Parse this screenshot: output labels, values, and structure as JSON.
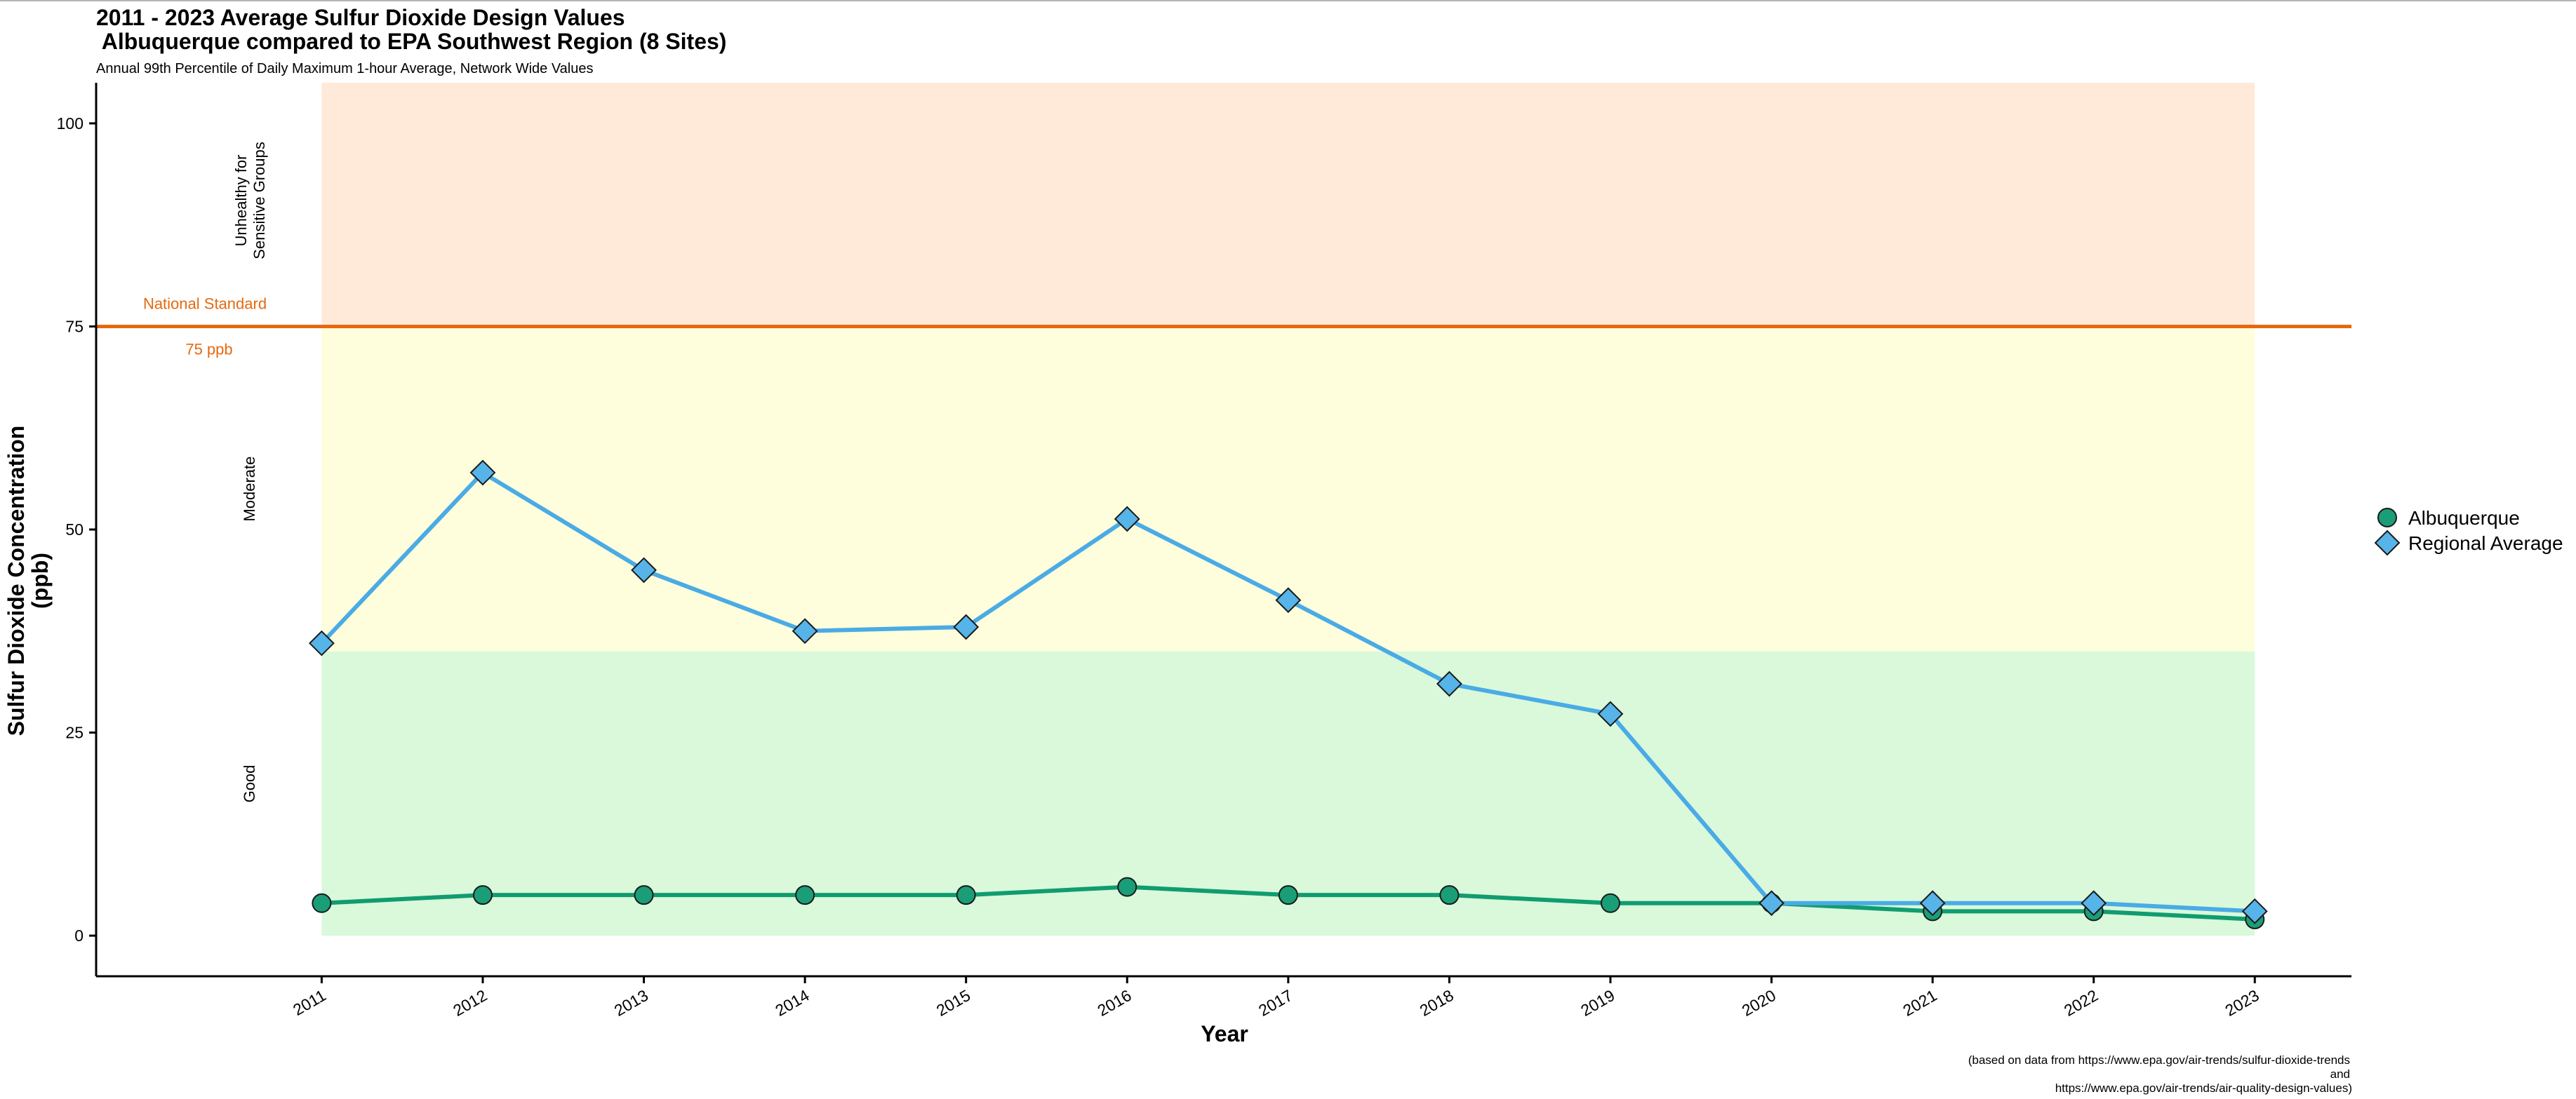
{
  "chart_data": {
    "type": "line",
    "title_line1": "2011 - 2023 Average Sulfur Dioxide Design Values",
    "title_line2": " Albuquerque compared to EPA Southwest Region (8 Sites)",
    "subtitle": "Annual 99th Percentile of Daily Maximum 1-hour Average, Network Wide Values",
    "xlabel": "Year",
    "ylabel_line1": "Sulfur Dioxide Concentration",
    "ylabel_line2": "(ppb)",
    "x": [
      2011,
      2012,
      2013,
      2014,
      2015,
      2016,
      2017,
      2018,
      2019,
      2020,
      2021,
      2022,
      2023
    ],
    "x_tick_labels": [
      "2011",
      "2012",
      "2013",
      "2014",
      "2015",
      "2016",
      "2017",
      "2018",
      "2019",
      "2020",
      "2021",
      "2022",
      "2023"
    ],
    "y_ticks": [
      0,
      25,
      50,
      75,
      100
    ],
    "y_tick_labels": [
      "0",
      "25",
      "50",
      "75",
      "100"
    ],
    "ylim": [
      -5,
      105
    ],
    "xlim": [
      2009.6,
      2023.6
    ],
    "series": [
      {
        "name": "Albuquerque",
        "marker": "circle",
        "color": "#1a9e77",
        "line_color": "#119c70",
        "values": [
          4,
          5,
          5,
          5,
          5,
          6,
          5,
          5,
          4,
          4,
          3,
          3,
          2
        ]
      },
      {
        "name": "Regional Average",
        "marker": "diamond",
        "color": "#56b4e9",
        "line_color": "#4aabe5",
        "values": [
          36,
          57,
          45,
          37.5,
          38,
          51.3,
          41.3,
          31,
          27.3,
          4,
          4,
          4,
          3
        ]
      }
    ],
    "bands": [
      {
        "label": "Good",
        "ymin": 0,
        "ymax": 35,
        "color": "#d9f9da"
      },
      {
        "label": "Moderate",
        "ymin": 35,
        "ymax": 75,
        "color": "#fffedc"
      },
      {
        "label_line1": "Unhealthy for",
        "label_line2": "Sensitive Groups",
        "ymin": 75,
        "ymax": 105,
        "color": "#ffead9"
      }
    ],
    "reference_line": {
      "y": 75,
      "color": "#e5690f",
      "label_top": "National Standard",
      "label_bottom": "75 ppb"
    },
    "legend": {
      "placement": "right"
    },
    "grid": false,
    "caption_line1": "(based on data from https://www.epa.gov/air-trends/sulfur-dioxide-trends",
    "caption_line2": "and",
    "caption_line3": "https://www.epa.gov/air-trends/air-quality-design-values)"
  }
}
